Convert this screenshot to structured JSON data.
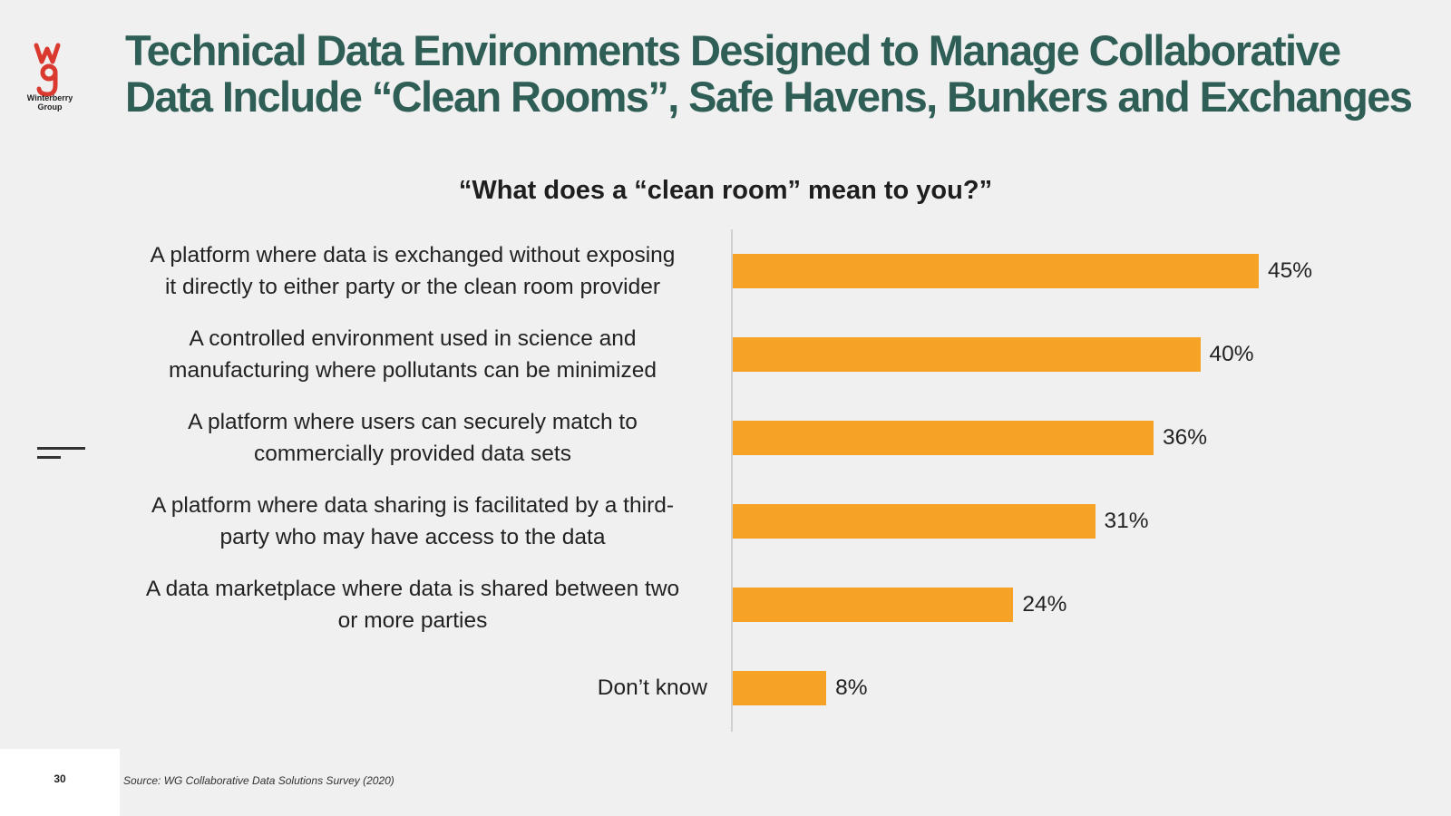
{
  "brand": {
    "logo_text_line1": "Winterberry",
    "logo_text_line2": "Group",
    "logo_color": "#d9392f"
  },
  "slide": {
    "title_line1": "Technical Data Environments Designed to Manage Collaborative",
    "title_line2": "Data Include “Clean Rooms”, Safe Havens, Bunkers and Exchanges",
    "title_color": "#2e5e55",
    "page_number": "30",
    "source": "Source: WG Collaborative Data Solutions Survey (2020)"
  },
  "chart_data": {
    "type": "bar",
    "orientation": "horizontal",
    "title": "“What does a “clean room” mean to you?”",
    "xlabel": "",
    "ylabel": "",
    "xlim": [
      0,
      50
    ],
    "bar_color": "#f5a226",
    "categories": [
      {
        "line1": "A platform where data is exchanged without exposing",
        "line2": "it directly to either party or the clean room provider"
      },
      {
        "line1": "A controlled environment used in science and",
        "line2": "manufacturing where pollutants can be minimized"
      },
      {
        "line1": "A platform where users can securely match to",
        "line2": "commercially provided data sets"
      },
      {
        "line1": "A platform where data sharing is facilitated by a third-",
        "line2": "party who may have access to the data"
      },
      {
        "line1": "A data marketplace where data is shared between two",
        "line2": "or more parties"
      },
      {
        "line1": "Don’t know",
        "line2": ""
      }
    ],
    "values": [
      45,
      40,
      36,
      31,
      24,
      8
    ],
    "value_labels": [
      "45%",
      "40%",
      "36%",
      "31%",
      "24%",
      "8%"
    ]
  }
}
